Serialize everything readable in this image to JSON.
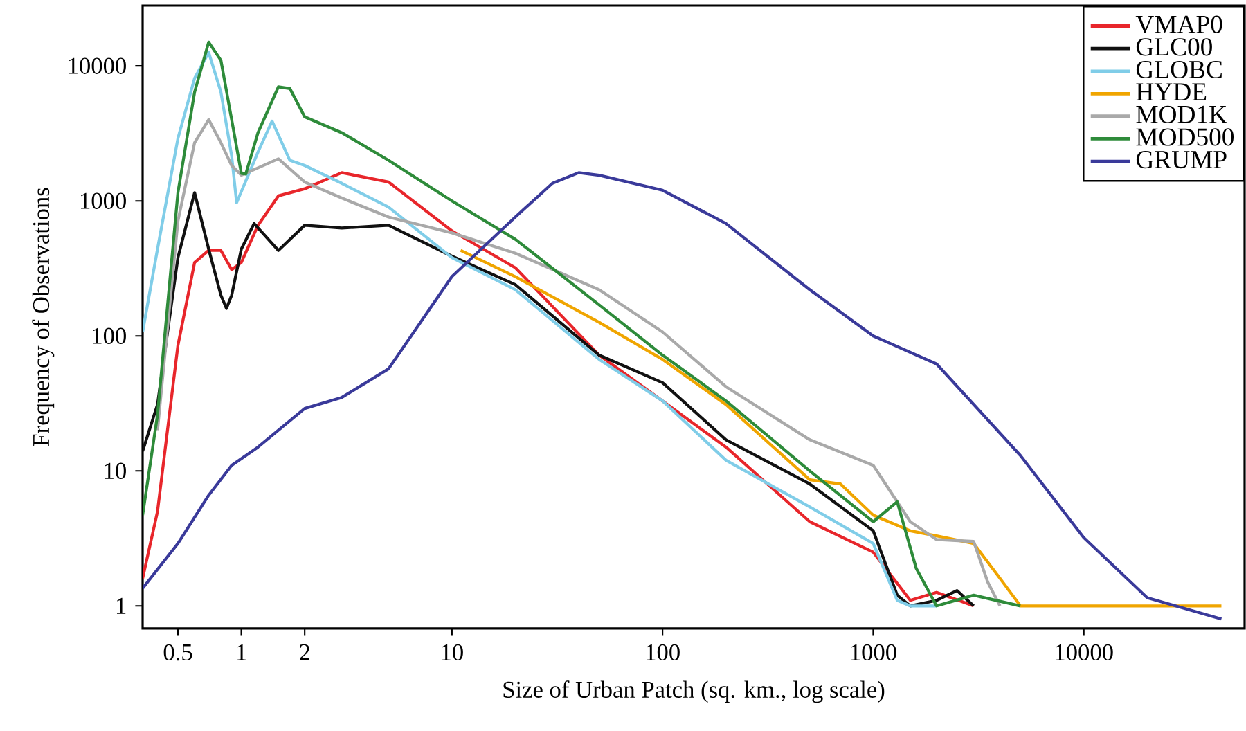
{
  "chart_data": {
    "type": "line",
    "xlabel": "Size of Urban Patch (sq. km., log scale)",
    "ylabel": "Frequency of Observations",
    "log": "xy",
    "xlim": [
      0.34,
      58000
    ],
    "ylim": [
      0.68,
      28000
    ],
    "xticks": [
      0.5,
      1,
      2,
      10,
      100,
      1000,
      10000
    ],
    "yticks": [
      1,
      10,
      100,
      1000,
      10000
    ],
    "legend": "top right",
    "series": [
      {
        "name": "VMAP0",
        "color": "#e8262b",
        "x": [
          0.34,
          0.4,
          0.5,
          0.6,
          0.7,
          0.8,
          0.9,
          1,
          1.2,
          1.5,
          2,
          3,
          5,
          10,
          20,
          50,
          100,
          200,
          500,
          1000,
          1500,
          2000,
          3000
        ],
        "values": [
          1.6,
          5,
          85,
          350,
          430,
          430,
          310,
          350,
          660,
          1090,
          1230,
          1620,
          1380,
          600,
          320,
          72,
          33,
          15,
          4.2,
          2.5,
          1.1,
          1.26,
          1
        ]
      },
      {
        "name": "GLC00",
        "color": "#111111",
        "x": [
          0.34,
          0.4,
          0.5,
          0.6,
          0.7,
          0.8,
          0.85,
          0.9,
          1,
          1.15,
          1.5,
          2,
          3,
          5,
          10,
          20,
          50,
          100,
          200,
          500,
          1000,
          1300,
          1500,
          2000,
          2500,
          3000
        ],
        "values": [
          14,
          31,
          380,
          1150,
          440,
          200,
          160,
          200,
          440,
          680,
          430,
          660,
          630,
          660,
          390,
          240,
          72,
          45,
          17,
          8,
          3.6,
          1.2,
          1,
          1.1,
          1.3,
          1
        ]
      },
      {
        "name": "GLOBC",
        "color": "#80cde8",
        "x": [
          0.34,
          0.4,
          0.5,
          0.6,
          0.7,
          0.8,
          0.9,
          0.95,
          1.2,
          1.4,
          1.7,
          2,
          3,
          5,
          10,
          20,
          50,
          100,
          200,
          500,
          1000,
          1300,
          1500,
          2000
        ],
        "values": [
          107,
          440,
          2900,
          8100,
          12600,
          6400,
          2150,
          970,
          2300,
          3900,
          2000,
          1830,
          1350,
          900,
          380,
          220,
          67,
          33,
          12,
          5.4,
          2.9,
          1.1,
          1,
          1
        ]
      },
      {
        "name": "HYDE",
        "color": "#f0a500",
        "x": [
          11,
          20,
          50,
          100,
          200,
          500,
          700,
          1000,
          1500,
          2000,
          3000,
          4000,
          5000,
          45000
        ],
        "values": [
          430,
          275,
          126,
          67,
          31,
          8.6,
          8,
          4.7,
          3.6,
          3.3,
          2.9,
          1.6,
          1,
          1
        ]
      },
      {
        "name": "MOD1K",
        "color": "#a9a9a9",
        "x": [
          0.4,
          0.5,
          0.6,
          0.7,
          0.8,
          0.9,
          1,
          1.5,
          2,
          3,
          5,
          10,
          20,
          50,
          100,
          200,
          500,
          1000,
          1500,
          2000,
          3000,
          3500,
          4000
        ],
        "values": [
          20,
          710,
          2700,
          4000,
          2700,
          1830,
          1550,
          2050,
          1380,
          1050,
          760,
          580,
          410,
          220,
          107,
          42,
          17,
          11,
          4.2,
          3.1,
          3,
          1.5,
          1
        ]
      },
      {
        "name": "MOD500",
        "color": "#2e8b3a",
        "x": [
          0.34,
          0.4,
          0.5,
          0.6,
          0.7,
          0.8,
          0.9,
          1,
          1.05,
          1.2,
          1.5,
          1.7,
          2,
          3,
          5,
          10,
          20,
          50,
          100,
          200,
          500,
          1000,
          1300,
          1600,
          2000,
          3000,
          5000
        ],
        "values": [
          4.7,
          26,
          1150,
          6400,
          15000,
          11000,
          4000,
          1600,
          1580,
          3200,
          7000,
          6800,
          4200,
          3200,
          2000,
          1000,
          520,
          170,
          72,
          33,
          10,
          4.2,
          5.9,
          1.9,
          1,
          1.2,
          1
        ]
      },
      {
        "name": "GRUMP",
        "color": "#3a3a9a",
        "x": [
          0.34,
          0.5,
          0.7,
          0.9,
          1.2,
          2,
          3,
          5,
          10,
          20,
          30,
          40,
          50,
          100,
          200,
          500,
          1000,
          2000,
          5000,
          10000,
          20000,
          45000
        ],
        "values": [
          1.35,
          2.9,
          6.6,
          11,
          15,
          29,
          35,
          57,
          275,
          760,
          1350,
          1620,
          1550,
          1200,
          680,
          220,
          100,
          62,
          13,
          3.2,
          1.15,
          0.8
        ]
      }
    ]
  }
}
